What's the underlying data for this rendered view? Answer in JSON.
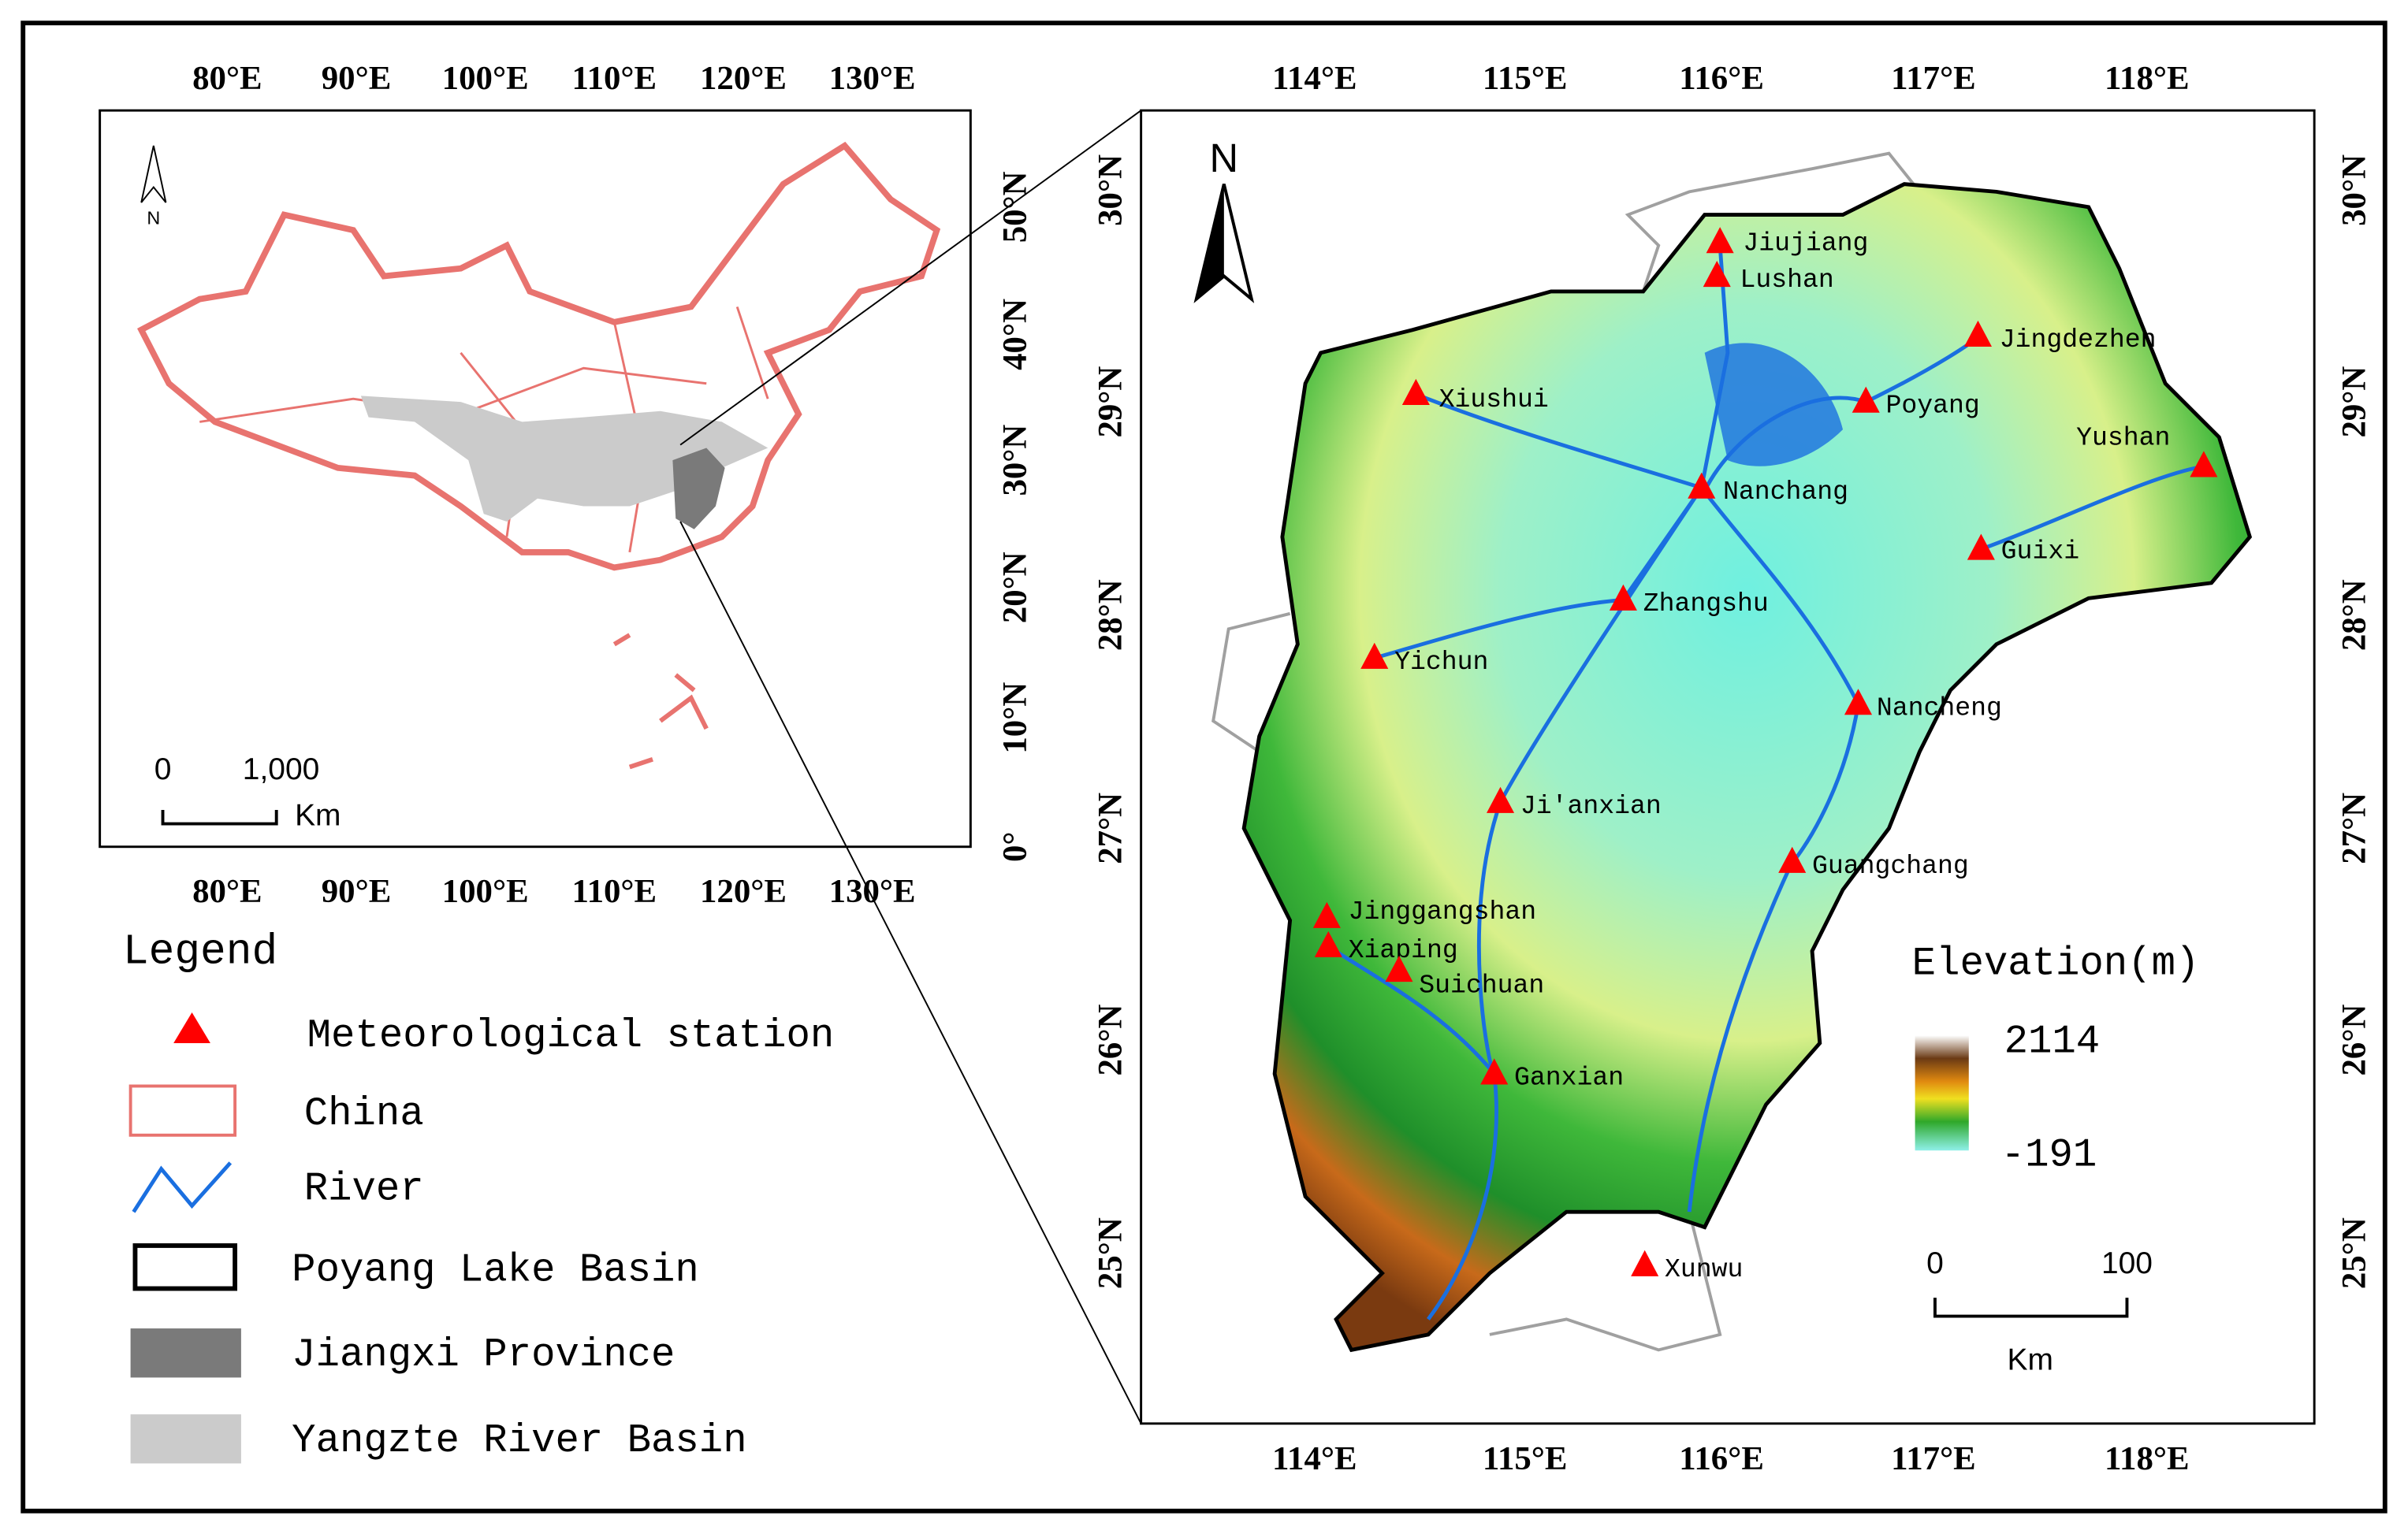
{
  "inset_map": {
    "north_label": "N",
    "lon_ticks": [
      "80°E",
      "90°E",
      "100°E",
      "110°E",
      "120°E",
      "130°E"
    ],
    "lat_ticks": [
      "50°N",
      "40°N",
      "30°N",
      "20°N",
      "10°N",
      "0°"
    ],
    "scale_bar": {
      "labels": [
        "0",
        "1,000"
      ],
      "unit": "Km"
    }
  },
  "legend": {
    "title": "Legend",
    "items": [
      "Meteorological station",
      "China",
      "River",
      "Poyang Lake Basin",
      "Jiangxi Province",
      "Yangzte River Basin"
    ]
  },
  "main_map": {
    "north_label": "N",
    "lon_ticks": [
      "114°E",
      "115°E",
      "116°E",
      "117°E",
      "118°E"
    ],
    "lat_ticks": [
      "30°N",
      "29°N",
      "28°N",
      "27°N",
      "26°N",
      "25°N"
    ],
    "stations": [
      "Jiujiang",
      "Lushan",
      "Jingdezhen",
      "Xiushui",
      "Poyang",
      "Yushan",
      "Nanchang",
      "Guixi",
      "Zhangshu",
      "Yichun",
      "Nancheng",
      "Ji'anxian",
      "Guangchang",
      "Jinggangshan",
      "Xiaping",
      "Suichuan",
      "Ganxian",
      "Xunwu"
    ],
    "elevation": {
      "title": "Elevation(m)",
      "max": 2114,
      "min": -191
    },
    "scale_bar": {
      "labels": [
        "0",
        "100"
      ],
      "unit": "Km"
    }
  }
}
